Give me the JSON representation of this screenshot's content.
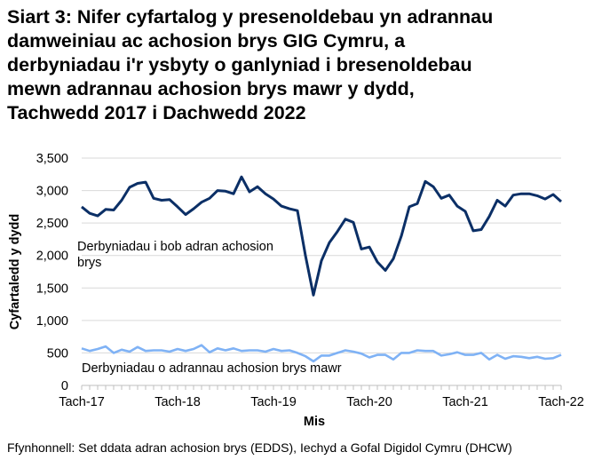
{
  "chart_data": {
    "type": "line",
    "title_lines": [
      "Siart 3: Nifer cyfartalog y presenoldebau yn adrannau",
      "damweiniau ac achosion brys GIG Cymru, a",
      "derbyniadau i'r ysbyty o ganlyniad i bresenoldebau",
      "mewn adrannau achosion brys mawr y dydd,",
      "Tachwedd 2017 i Dachwedd 2022"
    ],
    "xlabel": "Mis",
    "ylabel": "Cyfartaledd y dydd",
    "ylim": [
      0,
      3500
    ],
    "yticks": [
      "0",
      "500",
      "1,000",
      "1,500",
      "2,000",
      "2,500",
      "3,000",
      "3,500"
    ],
    "xtick_labels": [
      "Tach-17",
      "Tach-18",
      "Tach-19",
      "Tach-20",
      "Tach-21",
      "Tach-22"
    ],
    "grid": true,
    "series": [
      {
        "name": "Derbyniadau i bob adran achosion brys",
        "label_lines": [
          "Derbyniadau i bob adran achosion",
          "brys"
        ],
        "color": "#0b2f66",
        "values": [
          2750,
          2650,
          2610,
          2710,
          2700,
          2850,
          3050,
          3110,
          3130,
          2880,
          2850,
          2860,
          2750,
          2630,
          2720,
          2820,
          2880,
          3000,
          2990,
          2950,
          3210,
          2980,
          3060,
          2950,
          2870,
          2760,
          2720,
          2690,
          2000,
          1390,
          1920,
          2200,
          2370,
          2560,
          2510,
          2100,
          2130,
          1900,
          1770,
          1950,
          2300,
          2750,
          2800,
          3140,
          3060,
          2880,
          2930,
          2760,
          2680,
          2380,
          2400,
          2600,
          2850,
          2760,
          2930,
          2950,
          2950,
          2920,
          2870,
          2940,
          2830
        ]
      },
      {
        "name": "Derbyniadau o adrannau achosion brys mawr",
        "label_lines": [
          "Derbyniadau o adrannau achosion brys mawr"
        ],
        "color": "#7fb2f5",
        "values": [
          570,
          530,
          560,
          600,
          500,
          550,
          520,
          590,
          530,
          540,
          540,
          520,
          560,
          530,
          560,
          620,
          510,
          570,
          540,
          570,
          530,
          540,
          540,
          520,
          560,
          530,
          540,
          500,
          450,
          370,
          460,
          460,
          500,
          540,
          520,
          490,
          430,
          470,
          470,
          400,
          500,
          500,
          540,
          530,
          530,
          460,
          480,
          510,
          470,
          470,
          500,
          400,
          470,
          410,
          450,
          440,
          420,
          440,
          410,
          420,
          470
        ]
      }
    ]
  },
  "source": "Ffynhonnell: Set ddata adran achosion brys (EDDS), Iechyd a Gofal Digidol Cymru (DHCW)"
}
